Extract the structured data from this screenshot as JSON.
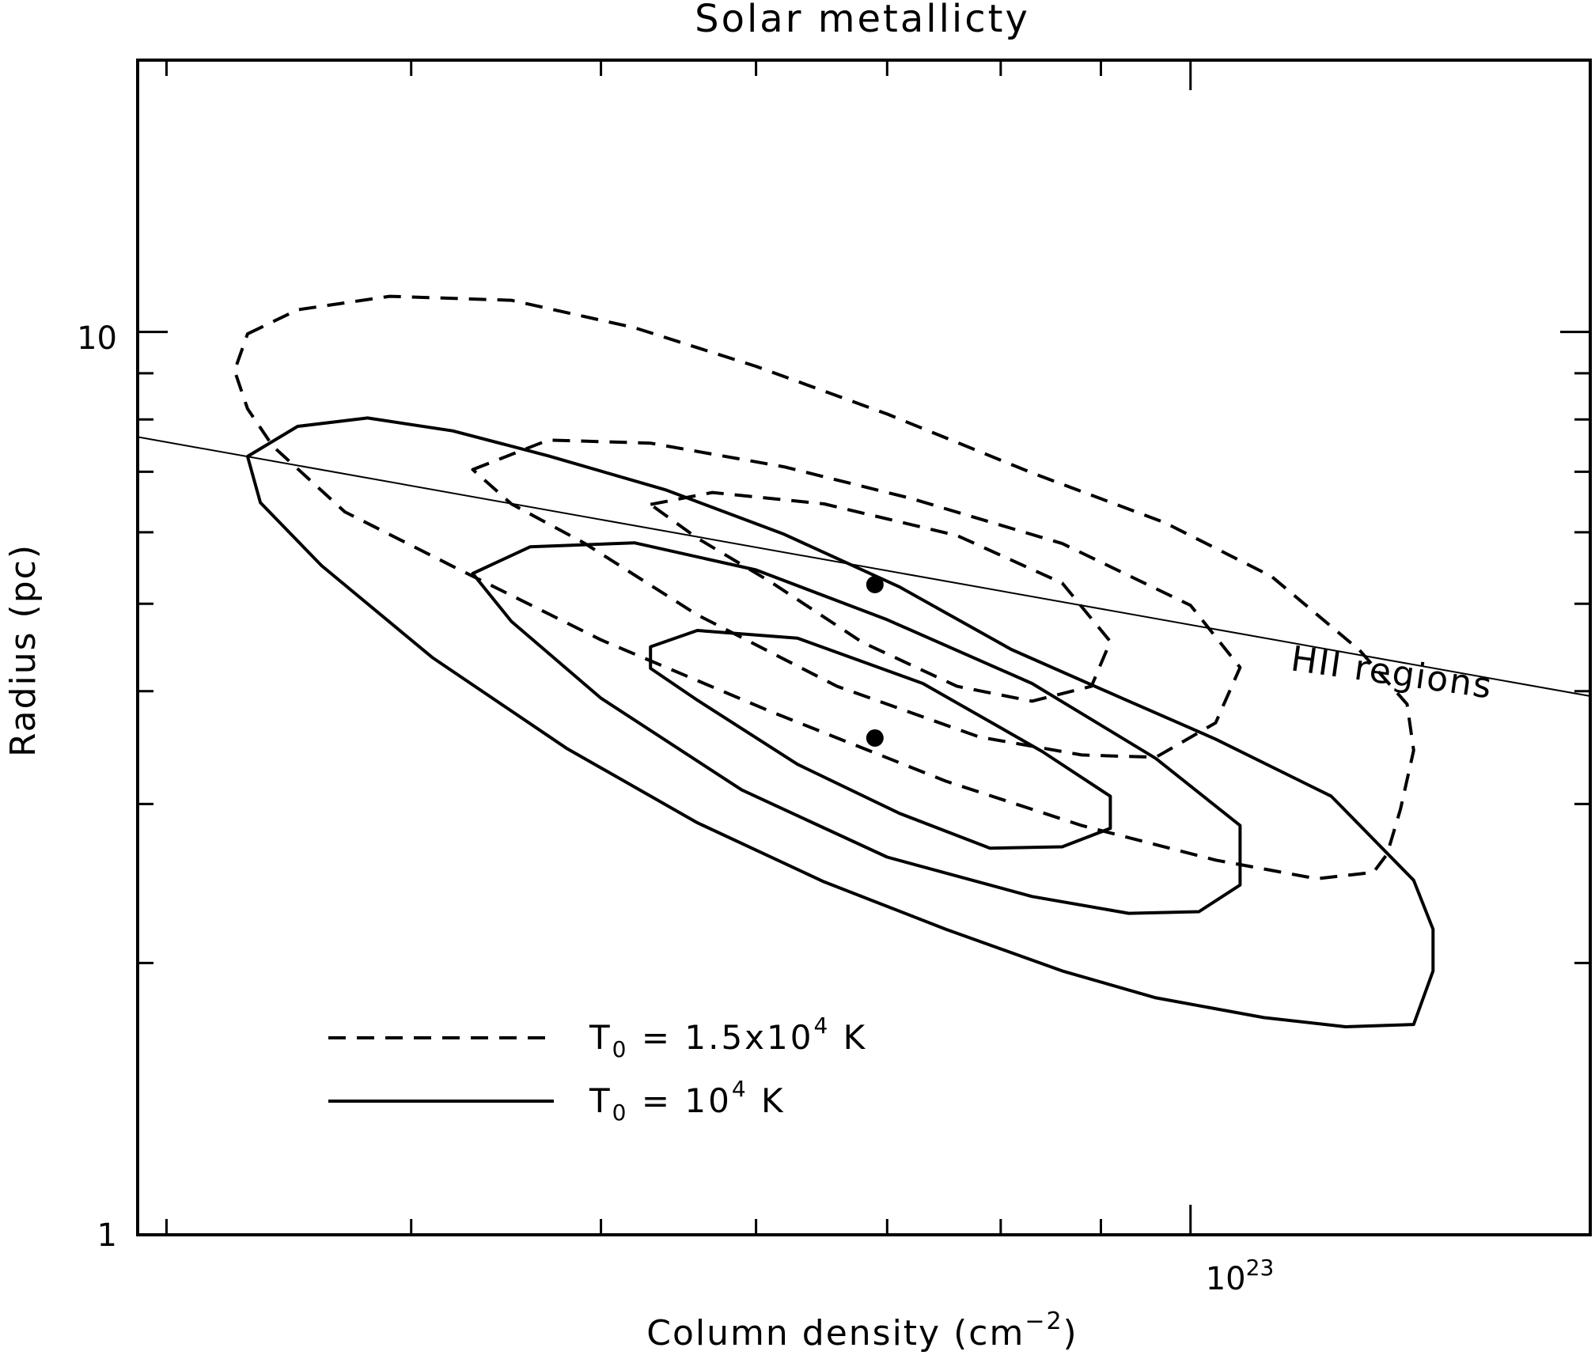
{
  "chart_data": {
    "type": "line",
    "title": "Solar metallicty",
    "xlabel": {
      "main": "Column density (cm",
      "sup": "−2",
      "close": ")"
    },
    "ylabel": "Radius (pc)",
    "x_scale": "log",
    "y_scale": "log",
    "xlim": [
      2.9e+22,
      1.6e+23
    ],
    "ylim": [
      1,
      20
    ],
    "x_tick_label": {
      "base": "10",
      "exp": "23",
      "value": 1e+23
    },
    "y_tick_labels": [
      {
        "text": "10",
        "value": 10
      },
      {
        "text": "1",
        "value": 1
      }
    ],
    "x_minor_ticks": [
      3e+22,
      4e+22,
      5e+22,
      6e+22,
      7e+22,
      8e+22,
      9e+22
    ],
    "y_minor_ticks": [
      2,
      3,
      4,
      5,
      6,
      7,
      8,
      9
    ],
    "grid": false,
    "legend_position": "bottom-left",
    "legend": [
      {
        "symbol": "T",
        "sub": "0",
        "text_a": " = 1.5x10",
        "sup": "4",
        "text_b": " K",
        "style": "dashed"
      },
      {
        "symbol": "T",
        "sub": "0",
        "text_a": " = 10",
        "sup": "4",
        "text_b": " K",
        "style": "solid"
      }
    ],
    "annotations": [
      {
        "text": "HII regions"
      }
    ],
    "reference_line": {
      "name": "HII regions",
      "x": [
        2.9e+22,
        1.6e+23
      ],
      "y": [
        7.65,
        3.95
      ]
    },
    "points": [
      {
        "x": 6.9e+22,
        "y": 5.25
      },
      {
        "x": 6.9e+22,
        "y": 3.55
      }
    ],
    "contours": [
      {
        "style": "dashed",
        "level": "outer",
        "points": [
          [
            3.3e+22,
            9.95
          ],
          [
            3.5e+22,
            10.58
          ],
          [
            3.9e+22,
            10.95
          ],
          [
            4.5e+22,
            10.84
          ],
          [
            5.2e+22,
            10.11
          ],
          [
            6e+22,
            9.16
          ],
          [
            7e+22,
            8.11
          ],
          [
            8.3e+22,
            6.98
          ],
          [
            9.7e+22,
            6.15
          ],
          [
            1.1e+23,
            5.36
          ],
          [
            1.22e+23,
            4.44
          ],
          [
            1.29e+23,
            3.87
          ],
          [
            1.3e+23,
            3.44
          ],
          [
            1.28e+23,
            2.96
          ],
          [
            1.26e+23,
            2.64
          ],
          [
            1.24e+23,
            2.52
          ],
          [
            1.16e+23,
            2.48
          ],
          [
            1.03e+23,
            2.6
          ],
          [
            8.8e+22,
            2.84
          ],
          [
            7.5e+22,
            3.18
          ],
          [
            6.1e+22,
            3.8
          ],
          [
            5e+22,
            4.56
          ],
          [
            4.2e+22,
            5.5
          ],
          [
            3.7e+22,
            6.32
          ],
          [
            3.4e+22,
            7.47
          ],
          [
            3.3e+22,
            8.22
          ],
          [
            3.25e+22,
            9.06
          ],
          [
            3.3e+22,
            9.95
          ]
        ]
      },
      {
        "style": "dashed",
        "level": "mid",
        "points": [
          [
            4.3e+22,
            7.04
          ],
          [
            4.7e+22,
            7.59
          ],
          [
            5.3e+22,
            7.53
          ],
          [
            6.2e+22,
            7.09
          ],
          [
            7.2e+22,
            6.54
          ],
          [
            8.6e+22,
            5.83
          ],
          [
            1e+23,
            4.98
          ],
          [
            1.06e+23,
            4.25
          ],
          [
            1.03e+23,
            3.69
          ],
          [
            9.6e+22,
            3.38
          ],
          [
            8.8e+22,
            3.4
          ],
          [
            7.8e+22,
            3.56
          ],
          [
            6.6e+22,
            4.05
          ],
          [
            5.6e+22,
            4.86
          ],
          [
            4.9e+22,
            5.84
          ],
          [
            4.5e+22,
            6.45
          ],
          [
            4.3e+22,
            7.04
          ]
        ]
      },
      {
        "style": "dashed",
        "level": "inner",
        "points": [
          [
            5.3e+22,
            6.44
          ],
          [
            5.7e+22,
            6.64
          ],
          [
            6.5e+22,
            6.45
          ],
          [
            7.6e+22,
            5.95
          ],
          [
            8.6e+22,
            5.27
          ],
          [
            9.1e+22,
            4.54
          ],
          [
            8.9e+22,
            4.05
          ],
          [
            8.3e+22,
            3.9
          ],
          [
            7.6e+22,
            4.05
          ],
          [
            6.8e+22,
            4.53
          ],
          [
            6.1e+22,
            5.29
          ],
          [
            5.6e+22,
            5.91
          ],
          [
            5.3e+22,
            6.44
          ]
        ]
      },
      {
        "style": "solid",
        "level": "outer",
        "points": [
          [
            3.5e+22,
            7.86
          ],
          [
            3.8e+22,
            8.03
          ],
          [
            4.2e+22,
            7.77
          ],
          [
            4.7e+22,
            7.29
          ],
          [
            5.4e+22,
            6.68
          ],
          [
            6.2e+22,
            5.97
          ],
          [
            7.1e+22,
            5.22
          ],
          [
            8.1e+22,
            4.45
          ],
          [
            9.2e+22,
            3.94
          ],
          [
            1.03e+23,
            3.54
          ],
          [
            1.18e+23,
            3.06
          ],
          [
            1.3e+23,
            2.47
          ],
          [
            1.33e+23,
            2.18
          ],
          [
            1.33e+23,
            1.96
          ],
          [
            1.31e+23,
            1.79
          ],
          [
            1.3e+23,
            1.71
          ],
          [
            1.2e+23,
            1.7
          ],
          [
            1.09e+23,
            1.74
          ],
          [
            9.6e+22,
            1.83
          ],
          [
            8.6e+22,
            1.96
          ],
          [
            7.5e+22,
            2.18
          ],
          [
            6.5e+22,
            2.46
          ],
          [
            5.6e+22,
            2.86
          ],
          [
            4.8e+22,
            3.46
          ],
          [
            4.1e+22,
            4.36
          ],
          [
            3.6e+22,
            5.51
          ],
          [
            3.35e+22,
            6.47
          ],
          [
            3.3e+22,
            7.28
          ],
          [
            3.5e+22,
            7.86
          ]
        ]
      },
      {
        "style": "solid",
        "level": "mid",
        "points": [
          [
            4.3e+22,
            5.4
          ],
          [
            4.6e+22,
            5.78
          ],
          [
            5.2e+22,
            5.84
          ],
          [
            6e+22,
            5.45
          ],
          [
            7e+22,
            4.8
          ],
          [
            8.3e+22,
            4.08
          ],
          [
            9.6e+22,
            3.37
          ],
          [
            1.06e+23,
            2.84
          ],
          [
            1.06e+23,
            2.44
          ],
          [
            1.01e+23,
            2.28
          ],
          [
            9.3e+22,
            2.27
          ],
          [
            8.3e+22,
            2.37
          ],
          [
            7e+22,
            2.62
          ],
          [
            5.9e+22,
            3.11
          ],
          [
            5e+22,
            3.93
          ],
          [
            4.5e+22,
            4.78
          ],
          [
            4.3e+22,
            5.4
          ]
        ]
      },
      {
        "style": "solid",
        "level": "inner",
        "points": [
          [
            5.3e+22,
            4.48
          ],
          [
            5.6e+22,
            4.67
          ],
          [
            6.3e+22,
            4.58
          ],
          [
            7.3e+22,
            4.08
          ],
          [
            8.4e+22,
            3.43
          ],
          [
            9.1e+22,
            3.06
          ],
          [
            9.1e+22,
            2.82
          ],
          [
            8.6e+22,
            2.69
          ],
          [
            7.9e+22,
            2.68
          ],
          [
            7.1e+22,
            2.93
          ],
          [
            6.3e+22,
            3.32
          ],
          [
            5.6e+22,
            3.91
          ],
          [
            5.3e+22,
            4.24
          ],
          [
            5.3e+22,
            4.48
          ]
        ]
      }
    ]
  }
}
